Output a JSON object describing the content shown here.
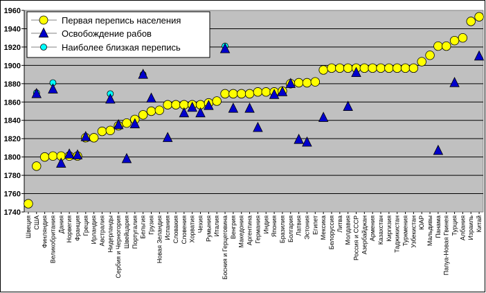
{
  "chart_data": {
    "type": "scatter",
    "title": "",
    "xlabel": "",
    "ylabel": "",
    "ylim": [
      1740,
      1960
    ],
    "yticks": [
      1740,
      1760,
      1780,
      1800,
      1820,
      1840,
      1860,
      1880,
      1900,
      1920,
      1940,
      1960
    ],
    "grid": true,
    "legend_position": "top-left",
    "categories": [
      "Швеция",
      "США",
      "Финляндия",
      "Великобритания",
      "Дания",
      "Норвегия",
      "Франция",
      "Греция",
      "Ирландия",
      "Австралия",
      "Нидерланды",
      "Сербия и Черногория",
      "Швейцария",
      "Португалия",
      "Бельгия",
      "Грузия",
      "Новая Зеландия",
      "Испания",
      "Словакия",
      "Словения",
      "Хорватия",
      "Чехия",
      "Румыния",
      "Италия",
      "Босния и Герцеговина",
      "Венгрия",
      "Македония",
      "Аргентина",
      "Германия",
      "Индия",
      "Япония",
      "Бразилия",
      "Болгария",
      "Латвия",
      "Эстония",
      "Египет",
      "Мексика",
      "Белоруссия",
      "Литва",
      "Молдавия",
      "Россия и СССР",
      "Азербайджан",
      "Армения",
      "Казахстан",
      "Киргизия",
      "Таджикистан",
      "Туркмения",
      "Узбекистан",
      "ЮАР",
      "Мальдивы",
      "Панама",
      "Папуа-Новая Гвинея",
      "Турция",
      "Албания",
      "Израиль",
      "Китай"
    ],
    "series": [
      {
        "name": "Первая перепись населения",
        "marker": "circle",
        "color": "#FFFF00",
        "values": [
          1749,
          1790,
          1800,
          1801,
          1801,
          1801,
          1801,
          1821,
          1821,
          1828,
          1829,
          1834,
          1837,
          1841,
          1846,
          1850,
          1851,
          1857,
          1857,
          1857,
          1857,
          1857,
          1859,
          1861,
          1869,
          1869,
          1869,
          1869,
          1871,
          1871,
          1871,
          1872,
          1880,
          1881,
          1881,
          1882,
          1895,
          1897,
          1897,
          1897,
          1897,
          1897,
          1897,
          1897,
          1897,
          1897,
          1897,
          1897,
          1904,
          1911,
          1921,
          1921,
          1927,
          1930,
          1948,
          1953
        ]
      },
      {
        "name": "Освобождение рабов",
        "marker": "triangle",
        "color": "#0000CC",
        "points": [
          {
            "x": 1,
            "y": 1869
          },
          {
            "x": 3,
            "y": 1874
          },
          {
            "x": 4,
            "y": 1793
          },
          {
            "x": 5,
            "y": 1803
          },
          {
            "x": 6,
            "y": 1802
          },
          {
            "x": 7,
            "y": 1822
          },
          {
            "x": 10,
            "y": 1863
          },
          {
            "x": 11,
            "y": 1835
          },
          {
            "x": 12,
            "y": 1798
          },
          {
            "x": 13,
            "y": 1836
          },
          {
            "x": 14,
            "y": 1890
          },
          {
            "x": 15,
            "y": 1864
          },
          {
            "x": 17,
            "y": 1821
          },
          {
            "x": 19,
            "y": 1848
          },
          {
            "x": 20,
            "y": 1854
          },
          {
            "x": 21,
            "y": 1848
          },
          {
            "x": 22,
            "y": 1856
          },
          {
            "x": 24,
            "y": 1918
          },
          {
            "x": 25,
            "y": 1853
          },
          {
            "x": 27,
            "y": 1853
          },
          {
            "x": 28,
            "y": 1832
          },
          {
            "x": 30,
            "y": 1868
          },
          {
            "x": 31,
            "y": 1871
          },
          {
            "x": 32,
            "y": 1880
          },
          {
            "x": 33,
            "y": 1819
          },
          {
            "x": 34,
            "y": 1816
          },
          {
            "x": 36,
            "y": 1843
          },
          {
            "x": 39,
            "y": 1855
          },
          {
            "x": 40,
            "y": 1892
          },
          {
            "x": 50,
            "y": 1807
          },
          {
            "x": 52,
            "y": 1881
          },
          {
            "x": 55,
            "y": 1910
          }
        ]
      },
      {
        "name": "Наиболее близкая перепись",
        "marker": "circle",
        "color": "#00FFFF",
        "points": [
          {
            "x": 1,
            "y": 1870
          },
          {
            "x": 3,
            "y": 1881
          },
          {
            "x": 10,
            "y": 1869
          },
          {
            "x": 14,
            "y": 1890
          },
          {
            "x": 24,
            "y": 1921
          }
        ]
      }
    ]
  }
}
